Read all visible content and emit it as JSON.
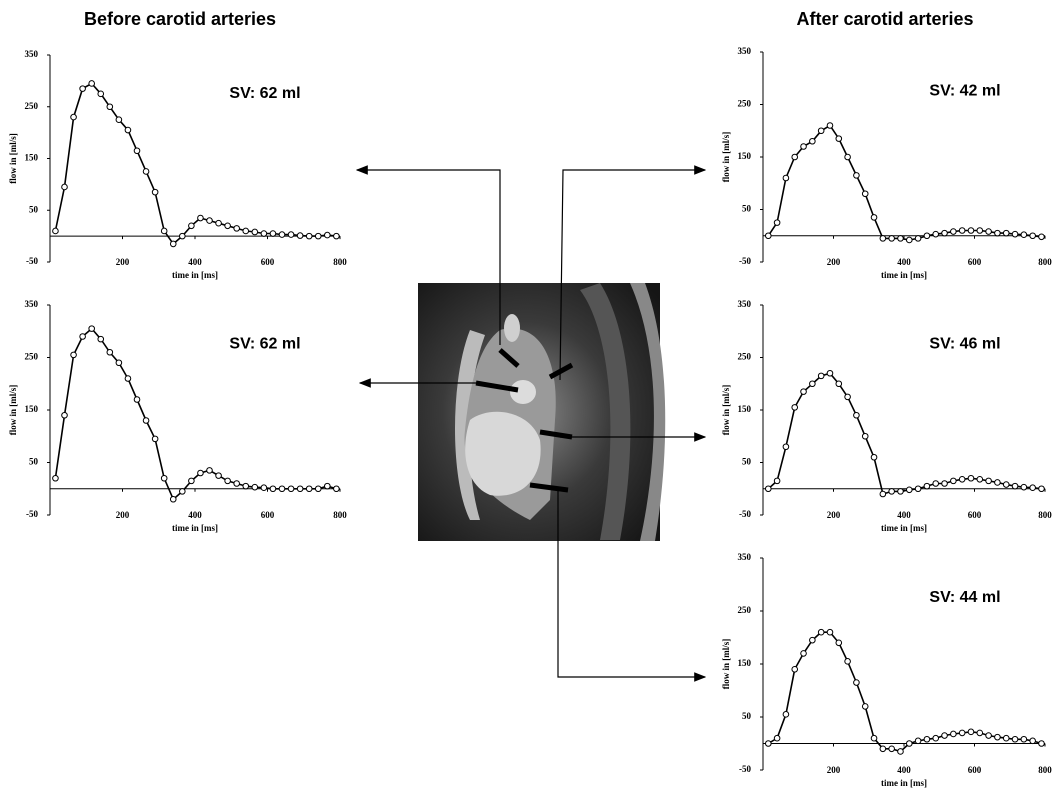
{
  "headings": [
    "Before carotid arteries",
    "After carotid arteries"
  ],
  "chart_data": [
    {
      "type": "line",
      "annotation": "SV: 62 ml",
      "xlabel": "time in [ms]",
      "ylabel": "flow in [ml/s]",
      "color": "#000000",
      "marker": "circle",
      "xlim": [
        0,
        800
      ],
      "xticks": [
        200,
        400,
        600,
        800
      ],
      "ylim": [
        -50,
        350
      ],
      "yticks": [
        -50,
        50,
        150,
        250,
        350
      ],
      "x": [
        15,
        40,
        65,
        90,
        115,
        140,
        165,
        190,
        215,
        240,
        265,
        290,
        315,
        340,
        365,
        390,
        415,
        440,
        465,
        490,
        515,
        540,
        565,
        590,
        615,
        640,
        665,
        690,
        715,
        740,
        765,
        790
      ],
      "values": [
        10,
        95,
        230,
        285,
        295,
        275,
        250,
        225,
        205,
        165,
        125,
        85,
        10,
        -15,
        0,
        20,
        35,
        30,
        25,
        20,
        15,
        10,
        8,
        5,
        5,
        3,
        3,
        1,
        0,
        0,
        2,
        0
      ]
    },
    {
      "type": "line",
      "annotation": "SV: 62 ml",
      "xlabel": "time in [ms]",
      "ylabel": "flow in [ml/s]",
      "color": "#000000",
      "marker": "circle",
      "xlim": [
        0,
        800
      ],
      "xticks": [
        200,
        400,
        600,
        800
      ],
      "ylim": [
        -50,
        350
      ],
      "yticks": [
        -50,
        50,
        150,
        250,
        350
      ],
      "x": [
        15,
        40,
        65,
        90,
        115,
        140,
        165,
        190,
        215,
        240,
        265,
        290,
        315,
        340,
        365,
        390,
        415,
        440,
        465,
        490,
        515,
        540,
        565,
        590,
        615,
        640,
        665,
        690,
        715,
        740,
        765,
        790
      ],
      "values": [
        20,
        140,
        255,
        290,
        305,
        285,
        260,
        240,
        210,
        170,
        130,
        95,
        20,
        -20,
        -5,
        15,
        30,
        35,
        25,
        15,
        10,
        5,
        3,
        2,
        0,
        0,
        0,
        0,
        0,
        0,
        5,
        0
      ]
    },
    {
      "type": "line",
      "annotation": "SV: 42 ml",
      "xlabel": "time in [ms]",
      "ylabel": "flow in [ml/s]",
      "color": "#000000",
      "marker": "circle",
      "xlim": [
        0,
        800
      ],
      "xticks": [
        200,
        400,
        600,
        800
      ],
      "ylim": [
        -50,
        350
      ],
      "yticks": [
        -50,
        50,
        150,
        250,
        350
      ],
      "x": [
        15,
        40,
        65,
        90,
        115,
        140,
        165,
        190,
        215,
        240,
        265,
        290,
        315,
        340,
        365,
        390,
        415,
        440,
        465,
        490,
        515,
        540,
        565,
        590,
        615,
        640,
        665,
        690,
        715,
        740,
        765,
        790
      ],
      "values": [
        0,
        25,
        110,
        150,
        170,
        180,
        200,
        210,
        185,
        150,
        115,
        80,
        35,
        -5,
        -5,
        -5,
        -8,
        -5,
        0,
        3,
        5,
        8,
        10,
        10,
        10,
        8,
        5,
        5,
        3,
        2,
        0,
        -2
      ]
    },
    {
      "type": "line",
      "annotation": "SV: 46 ml",
      "xlabel": "time in [ms]",
      "ylabel": "flow in [ml/s]",
      "color": "#000000",
      "marker": "circle",
      "xlim": [
        0,
        800
      ],
      "xticks": [
        200,
        400,
        600,
        800
      ],
      "ylim": [
        -50,
        350
      ],
      "yticks": [
        -50,
        50,
        150,
        250,
        350
      ],
      "x": [
        15,
        40,
        65,
        90,
        115,
        140,
        165,
        190,
        215,
        240,
        265,
        290,
        315,
        340,
        365,
        390,
        415,
        440,
        465,
        490,
        515,
        540,
        565,
        590,
        615,
        640,
        665,
        690,
        715,
        740,
        765,
        790
      ],
      "values": [
        0,
        15,
        80,
        155,
        185,
        200,
        215,
        220,
        200,
        175,
        140,
        100,
        60,
        -10,
        -5,
        -5,
        -2,
        0,
        5,
        10,
        10,
        15,
        18,
        20,
        18,
        15,
        12,
        8,
        5,
        3,
        2,
        0
      ]
    },
    {
      "type": "line",
      "annotation": "SV: 44 ml",
      "xlabel": "time in [ms]",
      "ylabel": "flow in [ml/s]",
      "color": "#000000",
      "marker": "circle",
      "xlim": [
        0,
        800
      ],
      "xticks": [
        200,
        400,
        600,
        800
      ],
      "ylim": [
        -50,
        350
      ],
      "yticks": [
        -50,
        50,
        150,
        250,
        350
      ],
      "x": [
        15,
        40,
        65,
        90,
        115,
        140,
        165,
        190,
        215,
        240,
        265,
        290,
        315,
        340,
        365,
        390,
        415,
        440,
        465,
        490,
        515,
        540,
        565,
        590,
        615,
        640,
        665,
        690,
        715,
        740,
        765,
        790
      ],
      "values": [
        0,
        10,
        55,
        140,
        170,
        195,
        210,
        210,
        190,
        155,
        115,
        70,
        10,
        -10,
        -10,
        -15,
        0,
        5,
        8,
        10,
        15,
        18,
        20,
        22,
        20,
        15,
        12,
        10,
        8,
        8,
        5,
        0
      ]
    }
  ]
}
